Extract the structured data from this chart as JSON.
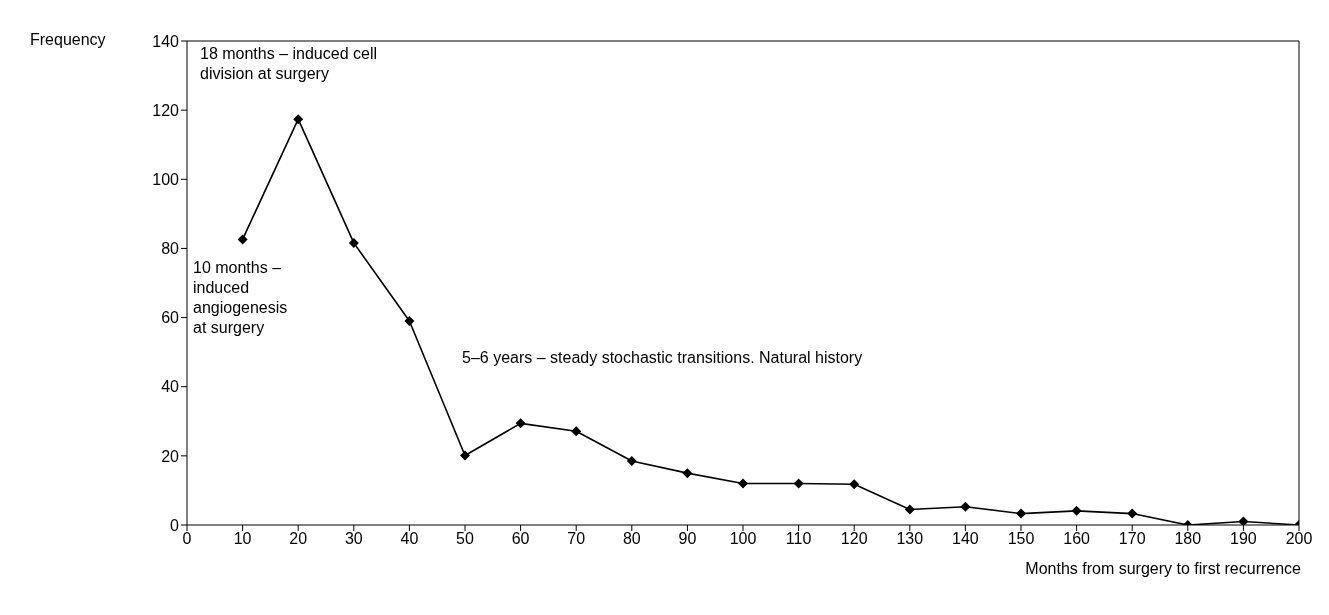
{
  "chart_data": {
    "type": "line",
    "ylabel": "Frequency",
    "xlabel": "Months from surgery to first recurrence",
    "x": [
      10,
      20,
      30,
      40,
      50,
      60,
      70,
      80,
      90,
      100,
      110,
      120,
      130,
      140,
      150,
      160,
      170,
      180,
      190,
      200
    ],
    "series": [
      {
        "color": "#000000",
        "values": [
          82.6,
          117.4,
          81.6,
          59,
          20.1,
          29.4,
          27.1,
          18.5,
          15,
          12,
          12,
          11.8,
          4.5,
          5.3,
          3.3,
          4.1,
          3.3,
          0,
          1,
          0
        ]
      }
    ],
    "xlim": [
      0,
      200
    ],
    "xticks": [
      0,
      10,
      20,
      30,
      40,
      50,
      60,
      70,
      80,
      90,
      100,
      110,
      120,
      130,
      140,
      150,
      160,
      170,
      180,
      190,
      200
    ],
    "ylim": [
      0,
      140
    ],
    "yticks": [
      0,
      20,
      40,
      60,
      80,
      100,
      120,
      140
    ],
    "marker": "diamond",
    "line_style": "solid",
    "grid": false,
    "legend": false,
    "annotations": [
      "18 months – induced cell division at surgery",
      "10 months – induced angiogenesis at surgery",
      "5–6 years – steady stochastic transitions. Natural history"
    ]
  }
}
